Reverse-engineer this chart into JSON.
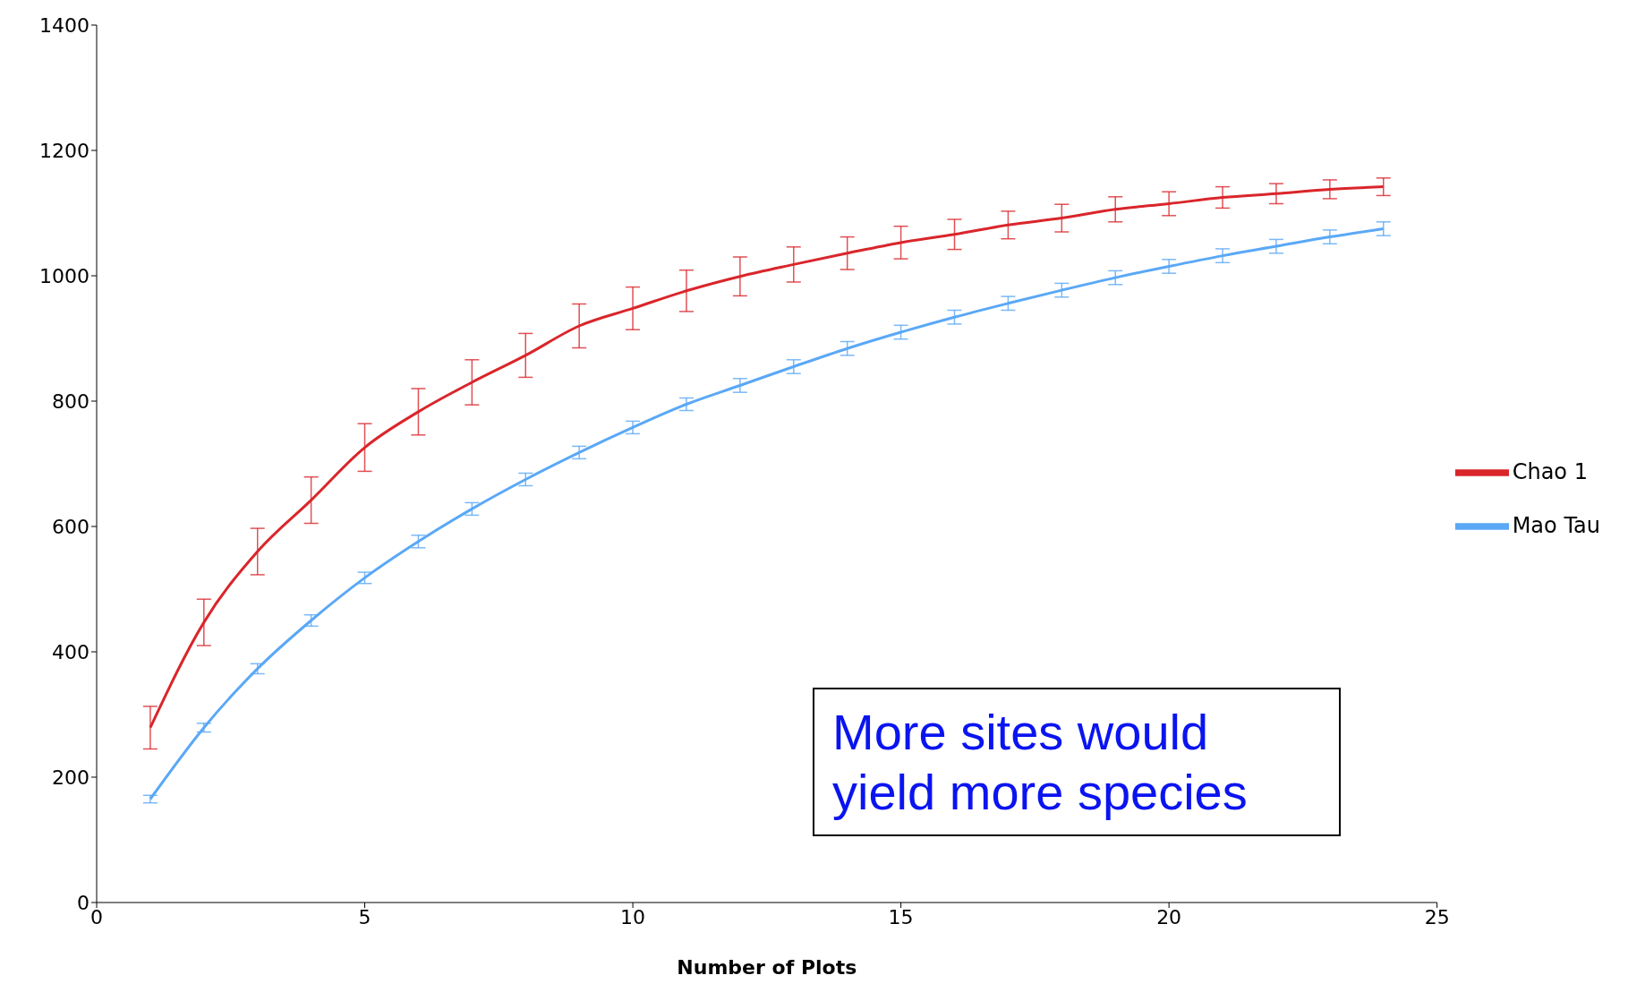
{
  "chart_data": {
    "type": "line",
    "xlabel": "Number of Plots",
    "x": [
      1,
      2,
      3,
      4,
      5,
      6,
      7,
      8,
      9,
      10,
      11,
      12,
      13,
      14,
      15,
      16,
      17,
      18,
      19,
      20,
      21,
      22,
      23,
      24
    ],
    "series": [
      {
        "name": "Mao Tau",
        "color": "#5aa8f6",
        "values": [
          165,
          279,
          373,
          450,
          518,
          576,
          628,
          675,
          718,
          758,
          795,
          825,
          855,
          884,
          910,
          934,
          956,
          977,
          997,
          1015,
          1032,
          1047,
          1062,
          1075
        ],
        "errors": [
          6,
          7,
          8,
          9,
          9,
          10,
          10,
          10,
          10,
          10,
          10,
          11,
          11,
          11,
          11,
          11,
          11,
          11,
          11,
          11,
          11,
          11,
          11,
          11
        ]
      },
      {
        "name": "Chao 1",
        "color": "#d9262b",
        "values": [
          279,
          447,
          560,
          642,
          726,
          783,
          830,
          873,
          920,
          948,
          976,
          999,
          1018,
          1036,
          1053,
          1066,
          1081,
          1092,
          1106,
          1115,
          1125,
          1131,
          1138,
          1142
        ],
        "errors": [
          34,
          37,
          37,
          37,
          38,
          37,
          36,
          35,
          35,
          34,
          33,
          31,
          28,
          26,
          26,
          24,
          22,
          22,
          20,
          19,
          17,
          16,
          15,
          14
        ]
      }
    ],
    "xlim": [
      0,
      25
    ],
    "xticks": [
      0,
      5,
      10,
      15,
      20,
      25
    ],
    "ylim": [
      0,
      1400
    ],
    "yticks": [
      0,
      200,
      400,
      600,
      800,
      1000,
      1200,
      1400
    ],
    "grid": false,
    "legend": "right",
    "marker": "none",
    "line_style": "solid",
    "annotations": [
      "More sites would yield more species"
    ]
  }
}
